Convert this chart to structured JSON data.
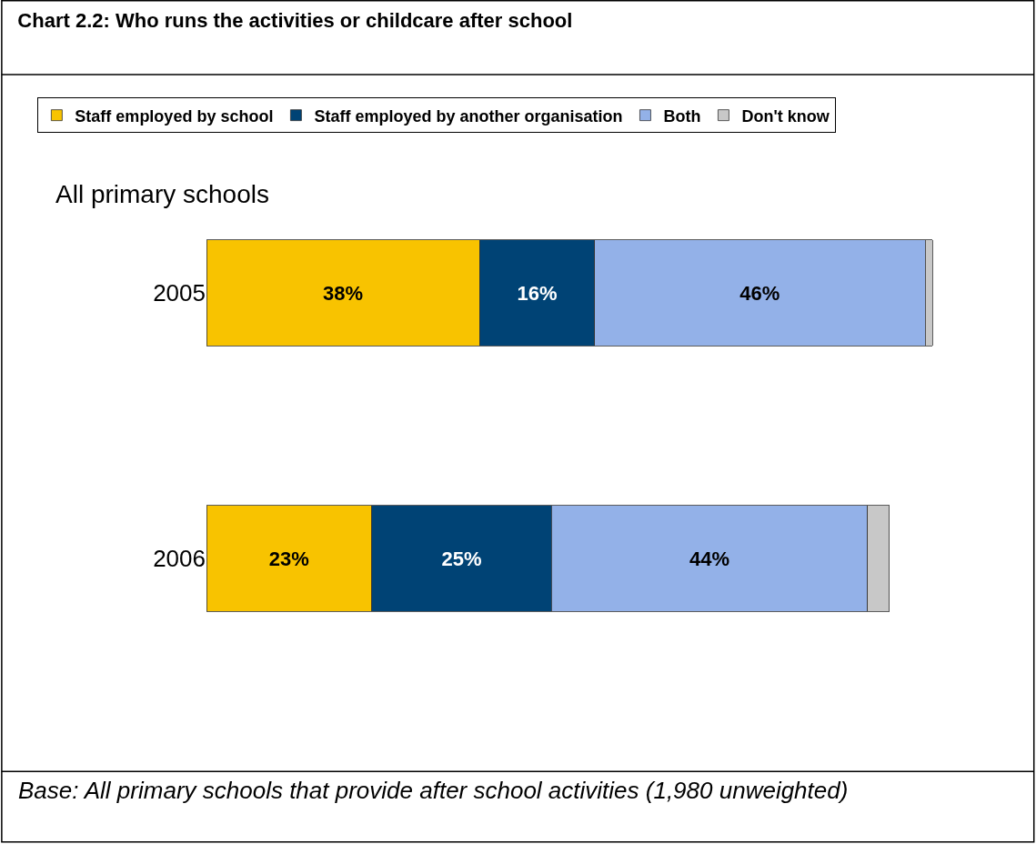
{
  "chart_data": {
    "type": "bar",
    "title": "Chart 2.2: Who runs the activities or childcare after school",
    "subtitle": "All primary schools",
    "orientation": "horizontal",
    "stacked": true,
    "legend": "top",
    "categories": [
      "2005",
      "2006"
    ],
    "series": [
      {
        "name": "Staff employed by school",
        "color": "#f8c300",
        "values": [
          38,
          23
        ],
        "value_labels": [
          "38%",
          "23%"
        ]
      },
      {
        "name": "Staff employed by another organisation",
        "color": "#004375",
        "values": [
          16,
          25
        ],
        "value_labels": [
          "16%",
          "25%"
        ]
      },
      {
        "name": "Both",
        "color": "#93b1e8",
        "values": [
          46,
          44
        ],
        "value_labels": [
          "46%",
          "44%"
        ]
      },
      {
        "name": "Don't know",
        "color": "#c8c8c8",
        "values": [
          1,
          3
        ],
        "value_labels": [
          null,
          null
        ]
      }
    ],
    "annotations": [
      "Base: All primary schools that provide after school activities (1,980 unweighted)"
    ]
  }
}
